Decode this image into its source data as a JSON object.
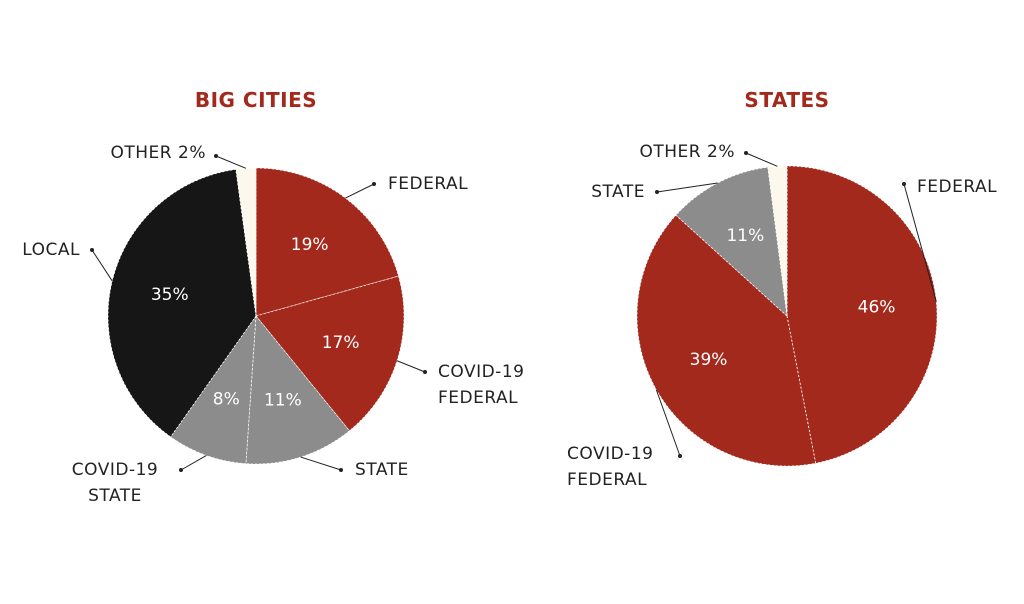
{
  "chart_data": [
    {
      "type": "pie",
      "title": "BIG CITIES",
      "categories": [
        "FEDERAL",
        "COVID-19 FEDERAL",
        "STATE",
        "COVID-19 STATE",
        "LOCAL",
        "OTHER"
      ],
      "values": [
        19,
        17,
        11,
        8,
        35,
        2
      ],
      "value_labels": [
        "19%",
        "17%",
        "11%",
        "8%",
        "35%",
        "2%"
      ],
      "colors": [
        "#a3291c",
        "#a3291c",
        "#8c8c8c",
        "#8c8c8c",
        "#161616",
        "#fcf8ee"
      ]
    },
    {
      "type": "pie",
      "title": "STATES",
      "categories": [
        "FEDERAL",
        "COVID-19 FEDERAL",
        "STATE",
        "OTHER"
      ],
      "values": [
        46,
        39,
        11,
        2
      ],
      "value_labels": [
        "46%",
        "39%",
        "11%",
        "2%"
      ],
      "colors": [
        "#a3291c",
        "#a3291c",
        "#8c8c8c",
        "#fcf8ee"
      ]
    }
  ]
}
